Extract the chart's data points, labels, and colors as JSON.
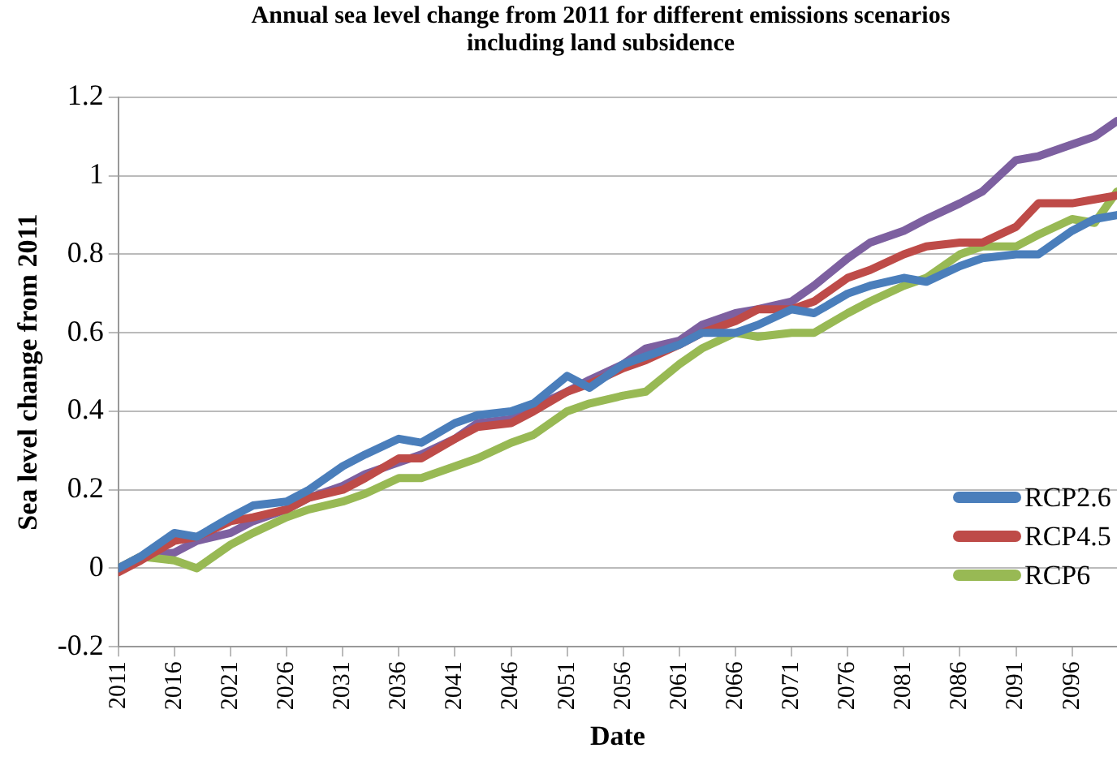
{
  "chart_data": {
    "type": "line",
    "title": "Annual sea level change from 2011 for different emissions scenarios including land subsidence",
    "xlabel": "Date",
    "ylabel": "Sea level change from 2011",
    "x": [
      2011,
      2013,
      2016,
      2018,
      2021,
      2023,
      2026,
      2028,
      2031,
      2033,
      2036,
      2038,
      2041,
      2043,
      2046,
      2048,
      2051,
      2053,
      2056,
      2058,
      2061,
      2063,
      2066,
      2068,
      2071,
      2073,
      2076,
      2078,
      2081,
      2083,
      2086,
      2088,
      2091,
      2093,
      2096,
      2098,
      2100
    ],
    "series": [
      {
        "name": "RCP2.6",
        "color": "#4a7ebb",
        "values": [
          0,
          0.03,
          0.09,
          0.08,
          0.13,
          0.16,
          0.17,
          0.2,
          0.26,
          0.29,
          0.33,
          0.32,
          0.37,
          0.39,
          0.4,
          0.42,
          0.49,
          0.46,
          0.52,
          0.54,
          0.57,
          0.6,
          0.6,
          0.62,
          0.66,
          0.65,
          0.7,
          0.72,
          0.74,
          0.73,
          0.77,
          0.79,
          0.8,
          0.8,
          0.86,
          0.89,
          0.9
        ]
      },
      {
        "name": "RCP4.5",
        "color": "#be4b48",
        "values": [
          -0.01,
          0.02,
          0.07,
          0.08,
          0.12,
          0.13,
          0.15,
          0.18,
          0.2,
          0.23,
          0.28,
          0.28,
          0.33,
          0.36,
          0.37,
          0.4,
          0.45,
          0.47,
          0.51,
          0.53,
          0.57,
          0.6,
          0.63,
          0.66,
          0.66,
          0.68,
          0.74,
          0.76,
          0.8,
          0.82,
          0.83,
          0.83,
          0.87,
          0.93,
          0.93,
          0.94,
          0.95
        ]
      },
      {
        "name": "RCP6",
        "color": "#98b954",
        "values": [
          0,
          0.03,
          0.02,
          0.0,
          0.06,
          0.09,
          0.13,
          0.15,
          0.17,
          0.19,
          0.23,
          0.23,
          0.26,
          0.28,
          0.32,
          0.34,
          0.4,
          0.42,
          0.44,
          0.45,
          0.52,
          0.56,
          0.6,
          0.59,
          0.6,
          0.6,
          0.65,
          0.68,
          0.72,
          0.74,
          0.8,
          0.82,
          0.82,
          0.85,
          0.89,
          0.88,
          0.96
        ]
      },
      {
        "color": "#7d60a0",
        "values": [
          0,
          0.03,
          0.04,
          0.07,
          0.09,
          0.12,
          0.15,
          0.18,
          0.21,
          0.24,
          0.27,
          0.29,
          0.33,
          0.37,
          0.38,
          0.41,
          0.45,
          0.48,
          0.52,
          0.56,
          0.58,
          0.62,
          0.65,
          0.66,
          0.68,
          0.72,
          0.79,
          0.83,
          0.86,
          0.89,
          0.93,
          0.96,
          1.04,
          1.05,
          1.08,
          1.1,
          1.14
        ]
      }
    ],
    "xlim": [
      2011,
      2100
    ],
    "xticks": [
      2011,
      2016,
      2021,
      2026,
      2031,
      2036,
      2041,
      2046,
      2051,
      2056,
      2061,
      2066,
      2071,
      2076,
      2081,
      2086,
      2091,
      2096
    ],
    "ylim": [
      -0.2,
      1.2
    ],
    "yticks": [
      -0.2,
      0,
      0.2,
      0.4,
      0.6,
      0.8,
      1,
      1.2
    ],
    "grid": "y",
    "legend": "bottom right",
    "marker": "none",
    "line_style": "solid"
  }
}
